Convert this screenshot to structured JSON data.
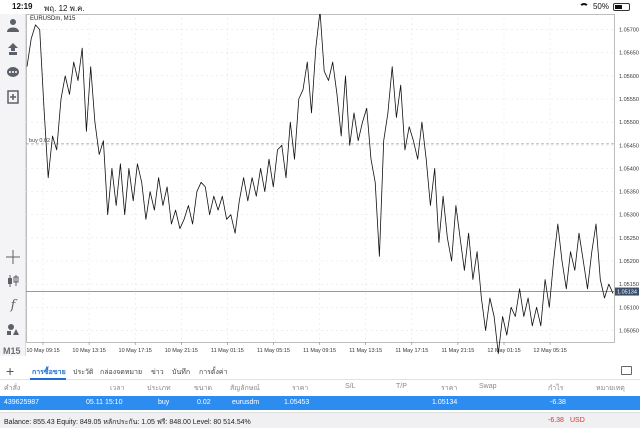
{
  "status_bar": {
    "time": "12:19",
    "date": "พฤ. 12 พ.ค.",
    "battery": "50%",
    "battery_level": 0.5
  },
  "toolbar": {
    "buttons": [
      "profile-icon",
      "trade-icon",
      "chat-icon",
      "new-order-icon",
      "crosshair-icon",
      "candles-icon",
      "function-icon",
      "objects-icon"
    ],
    "timeframe": "M15"
  },
  "chart": {
    "symbol_label": "EURUSDm, M15",
    "order_line_label": "buy 0.02",
    "current_price_label": "1.05134"
  },
  "chart_data": {
    "type": "line",
    "x_ticks": [
      "10 May 09:15",
      "10 May 13:15",
      "10 May 17:15",
      "10 May 21:15",
      "11 May 01:15",
      "11 May 05:15",
      "11 May 09:15",
      "11 May 13:15",
      "11 May 17:15",
      "11 May 21:15",
      "12 May 01:15",
      "12 May 05:15"
    ],
    "y_ticks": [
      "1.05700",
      "1.05650",
      "1.05600",
      "1.05550",
      "1.05500",
      "1.05450",
      "1.05400",
      "1.05350",
      "1.05300",
      "1.05250",
      "1.05200",
      "1.05150",
      "1.05100",
      "1.05050"
    ],
    "ylim": [
      1.05025,
      1.05725
    ],
    "order_price": 1.05453,
    "current_price": 1.05134,
    "values": [
      1.0562,
      1.0568,
      1.0571,
      1.057,
      1.0553,
      1.0538,
      1.0547,
      1.0544,
      1.0555,
      1.056,
      1.0556,
      1.0563,
      1.0559,
      1.0566,
      1.0548,
      1.0562,
      1.055,
      1.0543,
      1.0546,
      1.053,
      1.054,
      1.0532,
      1.0541,
      1.053,
      1.054,
      1.0533,
      1.0541,
      1.0537,
      1.0529,
      1.0535,
      1.0531,
      1.0538,
      1.0532,
      1.0536,
      1.0528,
      1.0531,
      1.0527,
      1.0529,
      1.0532,
      1.0528,
      1.0535,
      1.0537,
      1.0536,
      1.053,
      1.0534,
      1.0531,
      1.0534,
      1.0529,
      1.053,
      1.0526,
      1.0533,
      1.0538,
      1.0533,
      1.0538,
      1.0534,
      1.054,
      1.0535,
      1.0542,
      1.0536,
      1.0544,
      1.0545,
      1.0538,
      1.055,
      1.0542,
      1.0555,
      1.0557,
      1.0563,
      1.0552,
      1.0566,
      1.0574,
      1.0561,
      1.0559,
      1.0563,
      1.0556,
      1.0547,
      1.056,
      1.0545,
      1.0552,
      1.0546,
      1.055,
      1.0553,
      1.0542,
      1.0537,
      1.0521,
      1.0546,
      1.0552,
      1.0562,
      1.0551,
      1.0558,
      1.0544,
      1.0549,
      1.0546,
      1.0542,
      1.055,
      1.0542,
      1.0532,
      1.054,
      1.0524,
      1.0534,
      1.0525,
      1.052,
      1.0532,
      1.0525,
      1.0518,
      1.0526,
      1.0516,
      1.0522,
      1.0512,
      1.0505,
      1.0512,
      1.0508,
      1.05,
      1.0508,
      1.0504,
      1.051,
      1.0508,
      1.0514,
      1.0508,
      1.0512,
      1.0506,
      1.051,
      1.0506,
      1.0516,
      1.051,
      1.052,
      1.0528,
      1.052,
      1.0514,
      1.0522,
      1.0518,
      1.0526,
      1.052,
      1.0514,
      1.0522,
      1.0528,
      1.0516,
      1.0512,
      1.0515,
      1.0513
    ]
  },
  "terminal": {
    "tabs": [
      "การซื้อขาย",
      "ประวัติ",
      "กล่องจดหมาย",
      "ข่าว",
      "บันทึก",
      "การตั้งค่า"
    ],
    "columns": [
      "คำสั่ง",
      "เวลา",
      "ประเภท",
      "ขนาด",
      "สัญลักษณ์",
      "ราคา",
      "S/L",
      "T/P",
      "ราคา",
      "Swap",
      "กำไร",
      "หมายเหตุ"
    ],
    "positions": [
      {
        "ticket": "439625987",
        "time": "05.11 15:10",
        "type": "buy",
        "volume": "0.02",
        "symbol": "eurusdm",
        "open_price": "1.05453",
        "sl": "",
        "tp": "",
        "price": "1.05134",
        "swap": "",
        "profit": "-6.38",
        "comment": ""
      }
    ],
    "summary": "Balance: 855.43 Equity: 849.05 หลักประกัน: 1.05 ฟรี: 848.00 Level: 80 514.54%",
    "total_profit": "-6.38",
    "currency": "USD"
  },
  "colors": {
    "accent": "#2d8cf0",
    "loss": "#d9342b",
    "line": "#111111",
    "grid": "#e6e6e6"
  }
}
